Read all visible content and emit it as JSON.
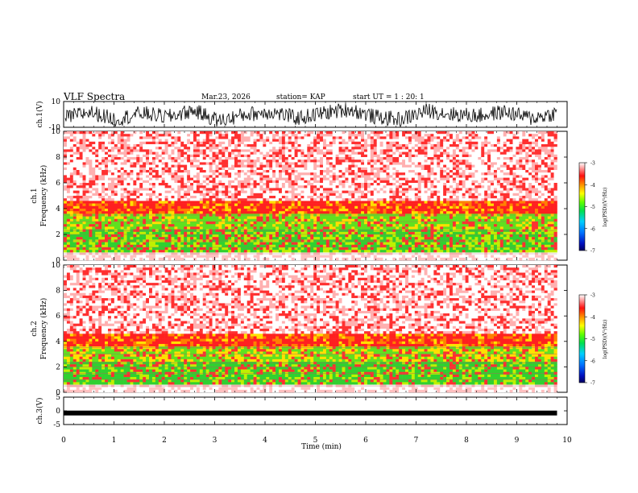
{
  "header": {
    "title": "VLF Spectra",
    "date": "Mar.23, 2026",
    "station": "station= KAP",
    "start": "start  UT =   1 : 20: 1"
  },
  "colors": {
    "trace": "#000000",
    "spectrogram_high": "#ff2020",
    "spectrogram_mid": "#ffd000",
    "spectrogram_low": "#30e030"
  },
  "chart_data": [
    {
      "id": "ch1-waveform",
      "type": "line",
      "title": "VLF Spectra",
      "ylabel": "ch.1(V)",
      "ylim": [
        -10,
        10
      ],
      "yticks": [
        "10",
        "-10"
      ],
      "xlim": [
        0,
        9.8
      ],
      "description_series": [
        {
          "name": "ch.1 voltage",
          "values": [
            -3,
            2,
            -4,
            1,
            -2,
            3,
            -5,
            0,
            2,
            -3,
            1,
            4,
            -2,
            -4,
            3,
            0,
            -1,
            2,
            -3,
            1
          ]
        }
      ]
    },
    {
      "id": "ch1-spectrogram",
      "type": "heatmap",
      "ylabel": "ch.1\nFrequency (kHz)",
      "ylim": [
        0,
        10
      ],
      "yticks": [
        "0",
        "2",
        "4",
        "6",
        "8",
        "10"
      ],
      "xlim": [
        0,
        9.8
      ],
      "colorbar": {
        "label": "log(PSD)(V²/Hz)",
        "range": [
          -7,
          -3
        ],
        "ticks": [
          "-3",
          "-4",
          "-5",
          "-6",
          "-7"
        ]
      }
    },
    {
      "id": "ch2-spectrogram",
      "type": "heatmap",
      "ylabel": "ch.2\nFrequency (kHz)",
      "ylim": [
        0,
        10
      ],
      "yticks": [
        "0",
        "2",
        "4",
        "6",
        "8",
        "10"
      ],
      "xlim": [
        0,
        9.8
      ],
      "colorbar": {
        "label": "log(PSD)(V²/Hz)",
        "range": [
          -7,
          -3
        ],
        "ticks": [
          "-3",
          "-4",
          "-5",
          "-6",
          "-7"
        ]
      }
    },
    {
      "id": "ch3-waveform",
      "type": "line",
      "ylabel": "ch.3(V)",
      "ylim": [
        -5,
        5
      ],
      "yticks": [
        "5",
        "0",
        "-5"
      ],
      "xlim": [
        0,
        9.8
      ],
      "description_series": [
        {
          "name": "ch.3 voltage",
          "values": [
            -0.8,
            -0.8,
            -0.8,
            -0.8
          ]
        }
      ]
    }
  ],
  "x_axis": {
    "label": "Time (min)",
    "range": [
      0,
      10
    ],
    "ticks": [
      "0",
      "1",
      "2",
      "3",
      "4",
      "5",
      "6",
      "7",
      "8",
      "9",
      "10"
    ]
  }
}
